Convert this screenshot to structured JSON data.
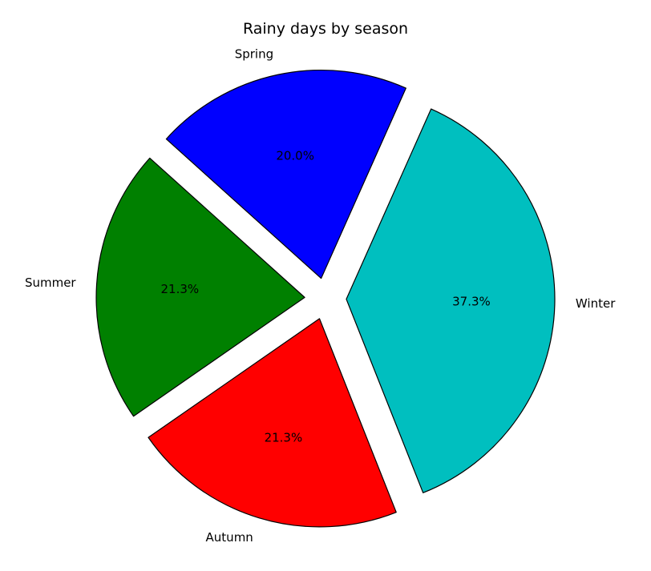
{
  "chart_data": {
    "type": "pie",
    "title": "Rainy days by season",
    "start_angle_deg": 66,
    "direction": "counterclockwise",
    "slices": [
      {
        "label": "Spring",
        "value": 15,
        "percent_label": "20.0%",
        "color": "#0000ff",
        "explode": true
      },
      {
        "label": "Summer",
        "value": 16,
        "percent_label": "21.3%",
        "color": "#008000",
        "explode": true
      },
      {
        "label": "Autumn",
        "value": 16,
        "percent_label": "21.3%",
        "color": "#ff0000",
        "explode": true
      },
      {
        "label": "Winter",
        "value": 28,
        "percent_label": "37.3%",
        "color": "#00bfbf",
        "explode": true
      }
    ]
  }
}
